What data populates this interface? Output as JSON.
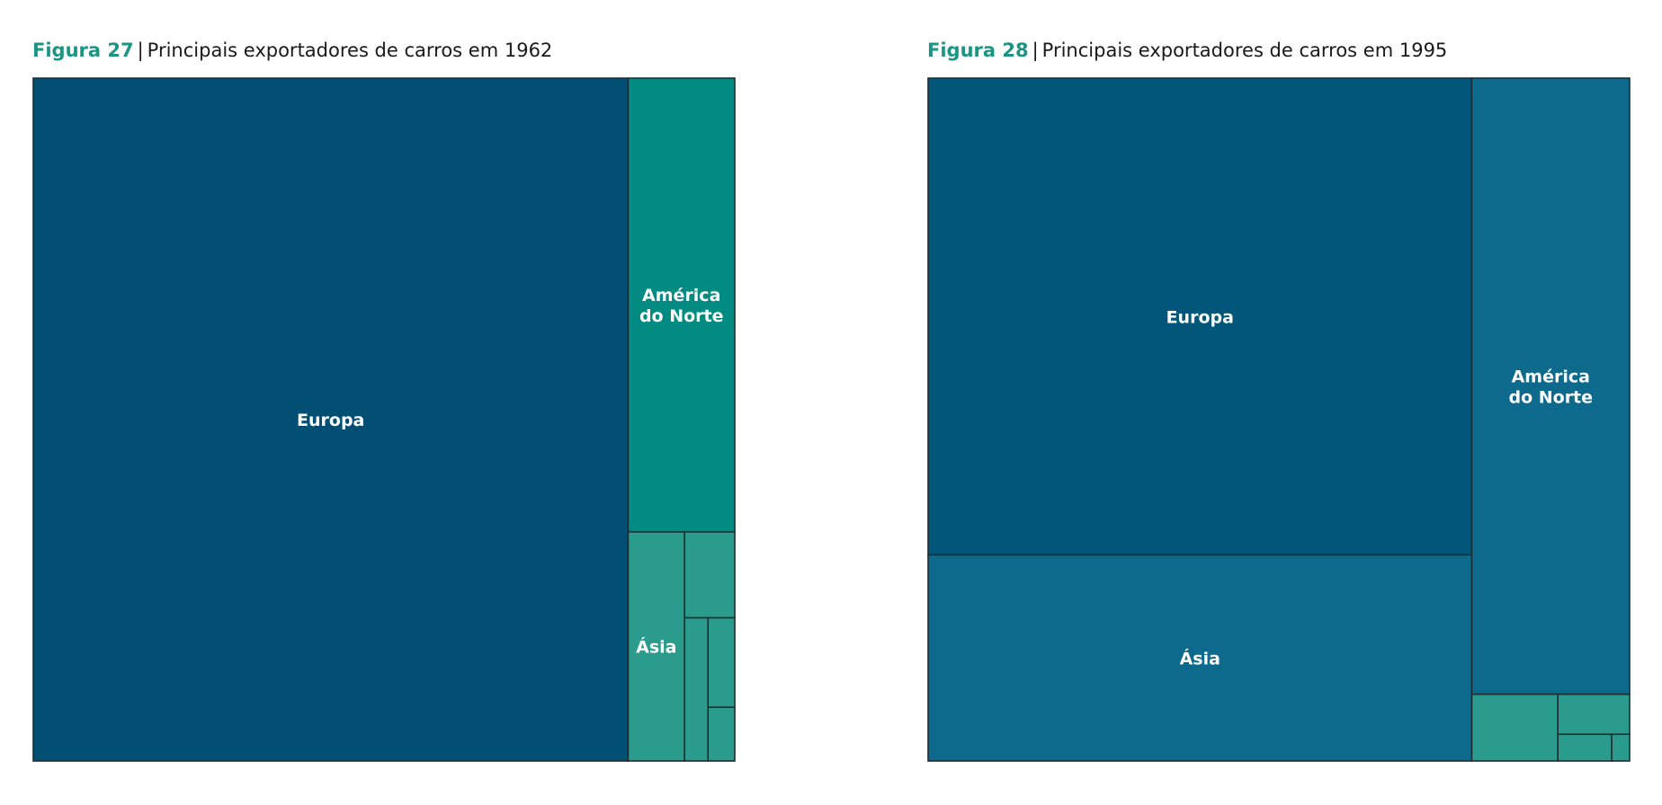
{
  "chart_data": [
    {
      "type": "treemap",
      "figure_label": "Figura 27",
      "title": "Principais exportadores de carros em 1962",
      "colors": {
        "Europa": "#024f73",
        "América do Norte": "#018b83",
        "Ásia": "#2a9b8c",
        "other": "#2a9b8c"
      },
      "items": [
        {
          "name": "Europa",
          "label": [
            "Europa"
          ],
          "share": 84.8
        },
        {
          "name": "América do Norte",
          "label": [
            "América",
            "do Norte"
          ],
          "share": 10.1
        },
        {
          "name": "Ásia",
          "label": [
            "Ásia"
          ],
          "share": 2.7
        },
        {
          "name": "",
          "label": [],
          "share": 0.9
        },
        {
          "name": "",
          "label": [],
          "share": 0.7
        },
        {
          "name": "",
          "label": [],
          "share": 0.5
        },
        {
          "name": "",
          "label": [],
          "share": 0.3
        }
      ]
    },
    {
      "type": "treemap",
      "figure_label": "Figura 28",
      "title": "Principais exportadores de carros em 1995",
      "colors": {
        "Europa": "#02567a",
        "América do Norte": "#0e6a8c",
        "Ásia": "#0e6a8c",
        "other": "#2a9b8c"
      },
      "items": [
        {
          "name": "Europa",
          "label": [
            "Europa"
          ],
          "share": 54.1
        },
        {
          "name": "Ásia",
          "label": [
            "Ásia"
          ],
          "share": 23.4
        },
        {
          "name": "América do Norte",
          "label": [
            "América",
            "do Norte"
          ],
          "share": 20.3
        },
        {
          "name": "",
          "label": [],
          "share": 1.2
        },
        {
          "name": "",
          "label": [],
          "share": 0.6
        },
        {
          "name": "",
          "label": [],
          "share": 0.3
        },
        {
          "name": "",
          "label": [],
          "share": 0.1
        }
      ]
    }
  ]
}
